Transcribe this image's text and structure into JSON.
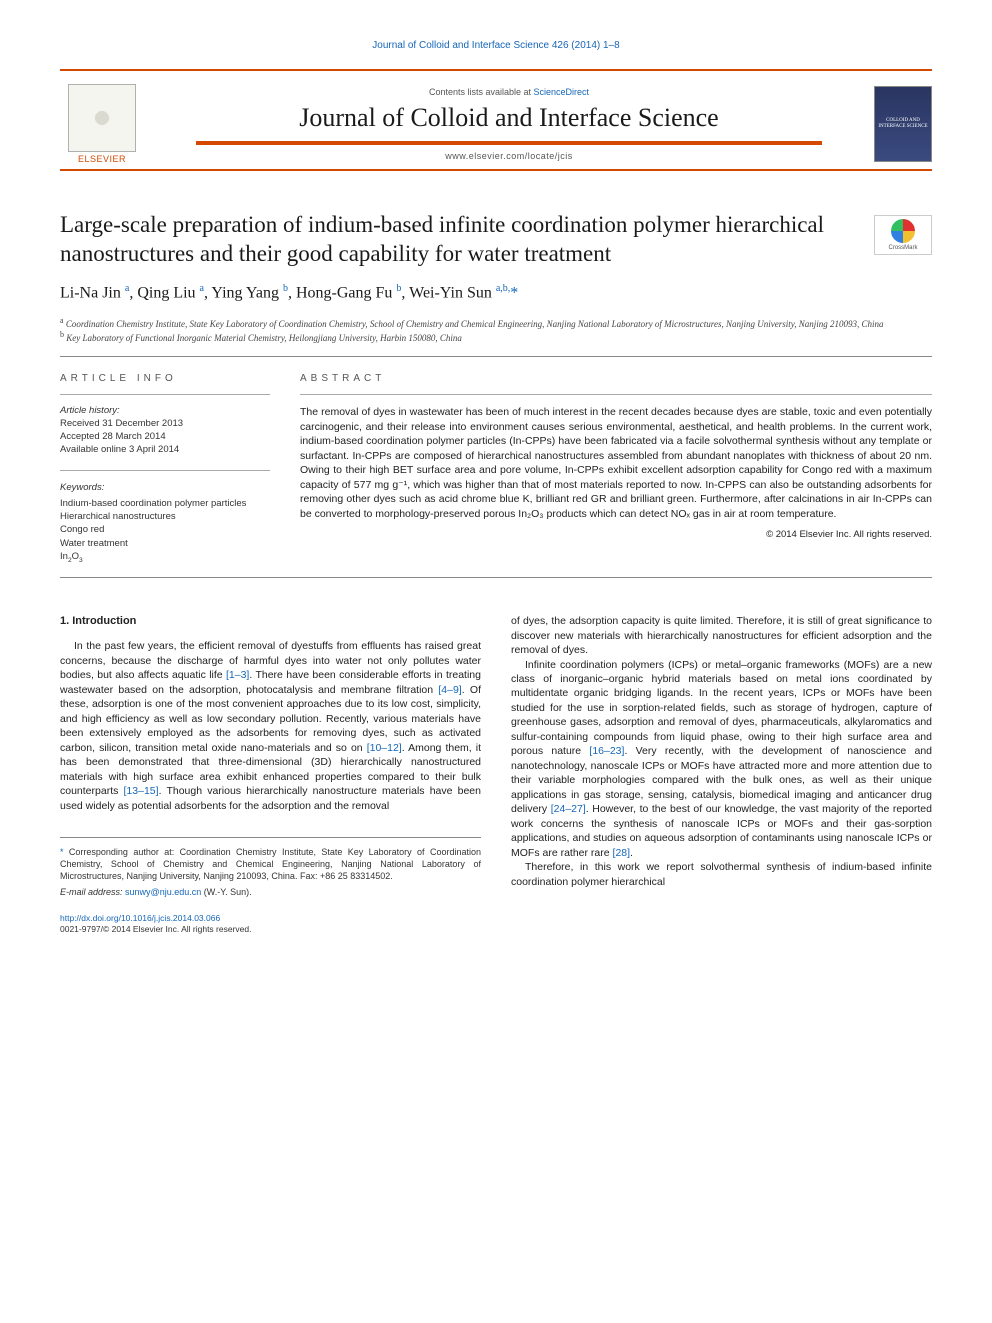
{
  "journal_ref": "Journal of Colloid and Interface Science 426 (2014) 1–8",
  "header": {
    "contents_pre": "Contents lists available at ",
    "contents_link": "ScienceDirect",
    "journal_title": "Journal of Colloid and Interface Science",
    "journal_url": "www.elsevier.com/locate/jcis",
    "publisher": "ELSEVIER",
    "cover_text": "COLLOID AND INTERFACE SCIENCE"
  },
  "crossmark_label": "CrossMark",
  "title": "Large-scale preparation of indium-based infinite coordination polymer hierarchical nanostructures and their good capability for water treatment",
  "authors_html": "Li-Na Jin <sup>a</sup>, Qing Liu <sup>a</sup>, Ying Yang <sup>b</sup>, Hong-Gang Fu <sup>b</sup>, Wei-Yin Sun <sup>a,b,</sup><span class='star'>*</span>",
  "affiliations": {
    "a": "Coordination Chemistry Institute, State Key Laboratory of Coordination Chemistry, School of Chemistry and Chemical Engineering, Nanjing National Laboratory of Microstructures, Nanjing University, Nanjing 210093, China",
    "b": "Key Laboratory of Functional Inorganic Material Chemistry, Heilongjiang University, Harbin 150080, China"
  },
  "article_info_label": "article info",
  "abstract_label": "abstract",
  "history": {
    "hdr": "Article history:",
    "received": "Received 31 December 2013",
    "accepted": "Accepted 28 March 2014",
    "online": "Available online 3 April 2014"
  },
  "keywords": {
    "hdr": "Keywords:",
    "items": [
      "Indium-based coordination polymer particles",
      "Hierarchical nanostructures",
      "Congo red",
      "Water treatment",
      "In₂O₃"
    ]
  },
  "abstract": "The removal of dyes in wastewater has been of much interest in the recent decades because dyes are stable, toxic and even potentially carcinogenic, and their release into environment causes serious environmental, aesthetical, and health problems. In the current work, indium-based coordination polymer particles (In-CPPs) have been fabricated via a facile solvothermal synthesis without any template or surfactant. In-CPPs are composed of hierarchical nanostructures assembled from abundant nanoplates with thickness of about 20 nm. Owing to their high BET surface area and pore volume, In-CPPs exhibit excellent adsorption capability for Congo red with a maximum capacity of 577 mg g⁻¹, which was higher than that of most materials reported to now. In-CPPS can also be outstanding adsorbents for removing other dyes such as acid chrome blue K, brilliant red GR and brilliant green. Furthermore, after calcinations in air In-CPPs can be converted to morphology-preserved porous In₂O₃ products which can detect NOₓ gas in air at room temperature.",
  "copyright": "© 2014 Elsevier Inc. All rights reserved.",
  "intro_heading": "1. Introduction",
  "col1_p1": "In the past few years, the efficient removal of dyestuffs from effluents has raised great concerns, because the discharge of harmful dyes into water not only pollutes water bodies, but also affects aquatic life [1–3]. There have been considerable efforts in treating wastewater based on the adsorption, photocatalysis and membrane filtration [4–9]. Of these, adsorption is one of the most convenient approaches due to its low cost, simplicity, and high efficiency as well as low secondary pollution. Recently, various materials have been extensively employed as the adsorbents for removing dyes, such as activated carbon, silicon, transition metal oxide nano-materials and so on [10–12]. Among them, it has been demonstrated that three-dimensional (3D) hierarchically nanostructured materials with high surface area exhibit enhanced properties compared to their bulk counterparts [13–15]. Though various hierarchically nanostructure materials have been used widely as potential adsorbents for the adsorption and the removal",
  "col2_p1": "of dyes, the adsorption capacity is quite limited. Therefore, it is still of great significance to discover new materials with hierarchically nanostructures for efficient adsorption and the removal of dyes.",
  "col2_p2": "Infinite coordination polymers (ICPs) or metal–organic frameworks (MOFs) are a new class of inorganic–organic hybrid materials based on metal ions coordinated by multidentate organic bridging ligands. In the recent years, ICPs or MOFs have been studied for the use in sorption-related fields, such as storage of hydrogen, capture of greenhouse gases, adsorption and removal of dyes, pharmaceuticals, alkylaromatics and sulfur-containing compounds from liquid phase, owing to their high surface area and porous nature [16–23]. Very recently, with the development of nanoscience and nanotechnology, nanoscale ICPs or MOFs have attracted more and more attention due to their variable morphologies compared with the bulk ones, as well as their unique applications in gas storage, sensing, catalysis, biomedical imaging and anticancer drug delivery [24–27]. However, to the best of our knowledge, the vast majority of the reported work concerns the synthesis of nanoscale ICPs or MOFs and their gas-sorption applications, and studies on aqueous adsorption of contaminants using nanoscale ICPs or MOFs are rather rare [28].",
  "col2_p3": "Therefore, in this work we report solvothermal synthesis of indium-based infinite coordination polymer hierarchical",
  "footnote_corr": "Corresponding author at: Coordination Chemistry Institute, State Key Laboratory of Coordination Chemistry, School of Chemistry and Chemical Engineering, Nanjing National Laboratory of Microstructures, Nanjing University, Nanjing 210093, China. Fax: +86 25 83314502.",
  "email_label": "E-mail address:",
  "email": "sunwy@nju.edu.cn",
  "email_suffix": " (W.-Y. Sun).",
  "doi": "http://dx.doi.org/10.1016/j.jcis.2014.03.066",
  "issn_line": "0021-9797/© 2014 Elsevier Inc. All rights reserved.",
  "colors": {
    "accent_orange": "#d54800",
    "link_blue": "#1566b8",
    "text": "#1a1a1a",
    "background": "#ffffff"
  },
  "refs": {
    "r1": "[1–3]",
    "r2": "[4–9]",
    "r3": "[10–12]",
    "r4": "[13–15]",
    "r5": "[16–23]",
    "r6": "[24–27]",
    "r7": "[28]"
  }
}
